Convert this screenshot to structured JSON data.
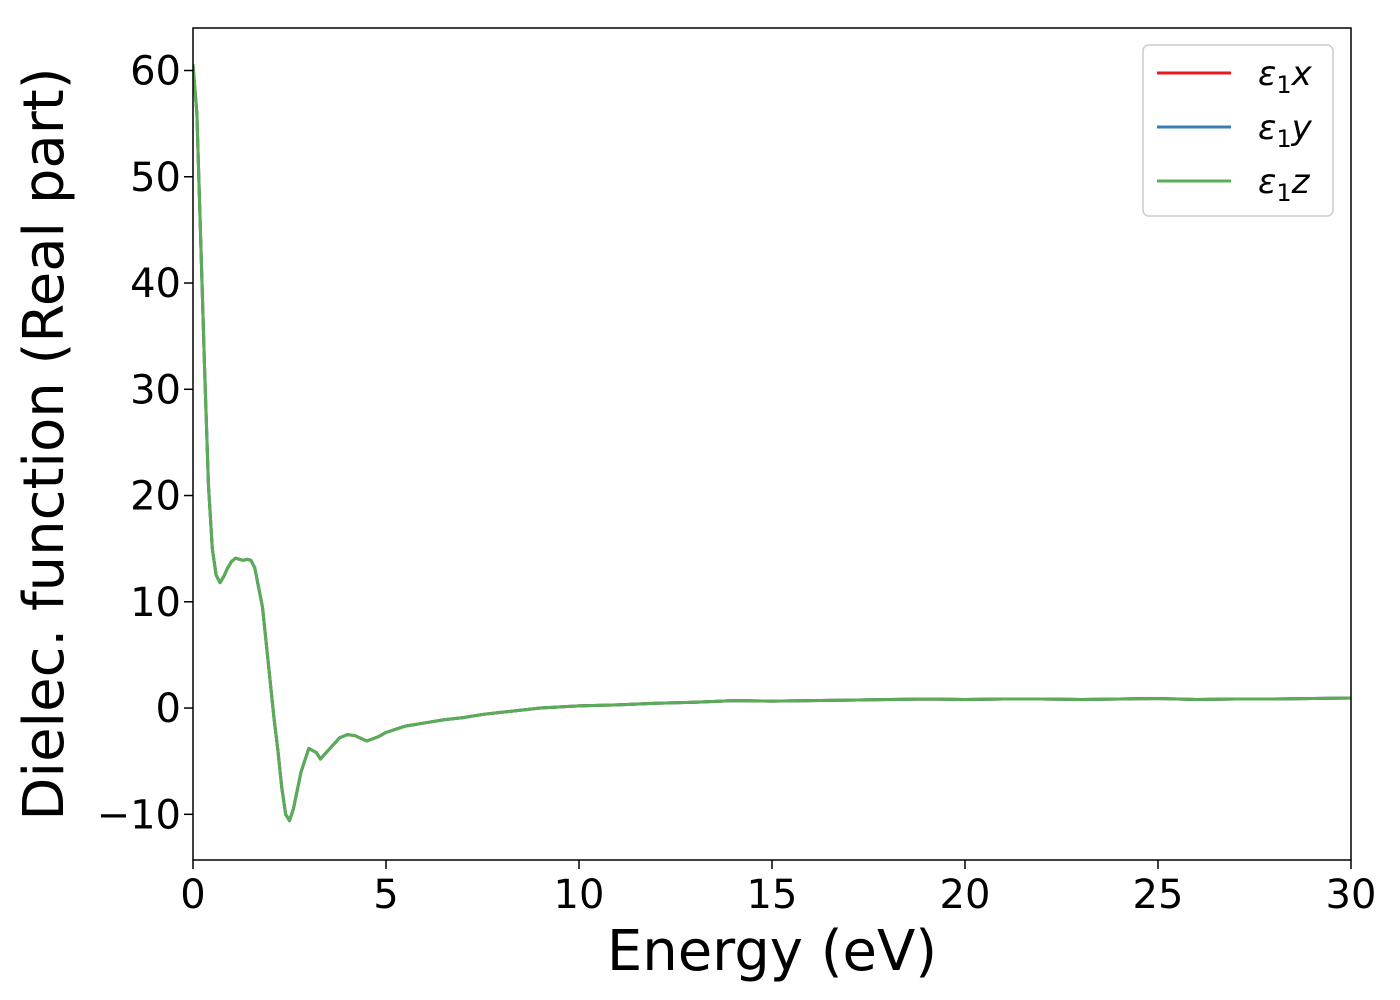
{
  "chart_data": {
    "type": "line",
    "title": "",
    "xlabel": "Energy (eV)",
    "ylabel": "Dielec. function (Real part)",
    "xlim": [
      0,
      30
    ],
    "ylim": [
      -14.3,
      64
    ],
    "x_ticks": [
      0,
      5,
      10,
      15,
      20,
      25,
      30
    ],
    "x_tick_labels": [
      "0",
      "5",
      "10",
      "15",
      "20",
      "25",
      "30"
    ],
    "y_ticks": [
      -10,
      0,
      10,
      20,
      30,
      40,
      50,
      60
    ],
    "y_tick_labels": [
      "−10",
      "0",
      "10",
      "20",
      "30",
      "40",
      "50",
      "60"
    ],
    "grid": false,
    "legend_position": "top-right",
    "series": [
      {
        "name": "ε₁x",
        "legend_base": "ε",
        "legend_sub": "1",
        "legend_suffix": "x",
        "color": "#e41a1c",
        "x": [
          0,
          0.1,
          0.2,
          0.3,
          0.4,
          0.5,
          0.6,
          0.7,
          0.8,
          0.9,
          1.0,
          1.1,
          1.2,
          1.3,
          1.4,
          1.5,
          1.6,
          1.8,
          2.0,
          2.1,
          2.2,
          2.3,
          2.4,
          2.5,
          2.6,
          2.8,
          3.0,
          3.2,
          3.3,
          3.5,
          3.8,
          4.0,
          4.2,
          4.5,
          4.8,
          5.0,
          5.5,
          6.0,
          6.5,
          7.0,
          7.5,
          8.0,
          9.0,
          10.0,
          11.0,
          12.0,
          13.0,
          14.0,
          15.0,
          16.0,
          17.0,
          18.0,
          19.0,
          20.0,
          21.0,
          22.0,
          23.0,
          24.0,
          25.0,
          26.0,
          27.0,
          28.0,
          29.0,
          30.0
        ],
        "y": [
          60.5,
          56.0,
          44.0,
          32.0,
          21.0,
          15.0,
          12.5,
          11.8,
          12.4,
          13.2,
          13.8,
          14.1,
          14.0,
          13.9,
          14.0,
          13.9,
          13.2,
          9.5,
          2.5,
          -1.0,
          -4.0,
          -7.5,
          -10.0,
          -10.6,
          -9.5,
          -6.0,
          -3.8,
          -4.2,
          -4.8,
          -4.0,
          -2.8,
          -2.5,
          -2.6,
          -3.1,
          -2.7,
          -2.3,
          -1.7,
          -1.4,
          -1.1,
          -0.9,
          -0.6,
          -0.4,
          0.0,
          0.2,
          0.3,
          0.45,
          0.55,
          0.7,
          0.65,
          0.7,
          0.75,
          0.8,
          0.85,
          0.8,
          0.85,
          0.85,
          0.8,
          0.85,
          0.9,
          0.8,
          0.85,
          0.85,
          0.9,
          0.95
        ]
      },
      {
        "name": "ε₁y",
        "legend_base": "ε",
        "legend_sub": "1",
        "legend_suffix": "y",
        "color": "#377eb8",
        "x": [
          0,
          0.1,
          0.2,
          0.3,
          0.4,
          0.5,
          0.6,
          0.7,
          0.8,
          0.9,
          1.0,
          1.1,
          1.2,
          1.3,
          1.4,
          1.5,
          1.6,
          1.8,
          2.0,
          2.1,
          2.2,
          2.3,
          2.4,
          2.5,
          2.6,
          2.8,
          3.0,
          3.2,
          3.3,
          3.5,
          3.8,
          4.0,
          4.2,
          4.5,
          4.8,
          5.0,
          5.5,
          6.0,
          6.5,
          7.0,
          7.5,
          8.0,
          9.0,
          10.0,
          11.0,
          12.0,
          13.0,
          14.0,
          15.0,
          16.0,
          17.0,
          18.0,
          19.0,
          20.0,
          21.0,
          22.0,
          23.0,
          24.0,
          25.0,
          26.0,
          27.0,
          28.0,
          29.0,
          30.0
        ],
        "y": [
          60.5,
          56.0,
          44.0,
          32.0,
          21.0,
          15.0,
          12.5,
          11.8,
          12.4,
          13.2,
          13.8,
          14.1,
          14.0,
          13.9,
          14.0,
          13.9,
          13.2,
          9.5,
          2.5,
          -1.0,
          -4.0,
          -7.5,
          -10.0,
          -10.6,
          -9.5,
          -6.0,
          -3.8,
          -4.2,
          -4.8,
          -4.0,
          -2.8,
          -2.5,
          -2.6,
          -3.1,
          -2.7,
          -2.3,
          -1.7,
          -1.4,
          -1.1,
          -0.9,
          -0.6,
          -0.4,
          0.0,
          0.2,
          0.3,
          0.45,
          0.55,
          0.7,
          0.65,
          0.7,
          0.75,
          0.8,
          0.85,
          0.8,
          0.85,
          0.85,
          0.8,
          0.85,
          0.9,
          0.8,
          0.85,
          0.85,
          0.9,
          0.95
        ]
      },
      {
        "name": "ε₁z",
        "legend_base": "ε",
        "legend_sub": "1",
        "legend_suffix": "z",
        "color": "#5aac57",
        "x": [
          0,
          0.1,
          0.2,
          0.3,
          0.4,
          0.5,
          0.6,
          0.7,
          0.8,
          0.9,
          1.0,
          1.1,
          1.2,
          1.3,
          1.4,
          1.5,
          1.6,
          1.8,
          2.0,
          2.1,
          2.2,
          2.3,
          2.4,
          2.5,
          2.6,
          2.8,
          3.0,
          3.2,
          3.3,
          3.5,
          3.8,
          4.0,
          4.2,
          4.5,
          4.8,
          5.0,
          5.5,
          6.0,
          6.5,
          7.0,
          7.5,
          8.0,
          9.0,
          10.0,
          11.0,
          12.0,
          13.0,
          14.0,
          15.0,
          16.0,
          17.0,
          18.0,
          19.0,
          20.0,
          21.0,
          22.0,
          23.0,
          24.0,
          25.0,
          26.0,
          27.0,
          28.0,
          29.0,
          30.0
        ],
        "y": [
          60.5,
          56.0,
          44.0,
          32.0,
          21.0,
          15.0,
          12.5,
          11.8,
          12.4,
          13.2,
          13.8,
          14.1,
          14.0,
          13.9,
          14.0,
          13.9,
          13.2,
          9.5,
          2.5,
          -1.0,
          -4.0,
          -7.5,
          -10.0,
          -10.6,
          -9.5,
          -6.0,
          -3.8,
          -4.2,
          -4.8,
          -4.0,
          -2.8,
          -2.5,
          -2.6,
          -3.1,
          -2.7,
          -2.3,
          -1.7,
          -1.4,
          -1.1,
          -0.9,
          -0.6,
          -0.4,
          0.0,
          0.2,
          0.3,
          0.45,
          0.55,
          0.7,
          0.65,
          0.7,
          0.75,
          0.8,
          0.85,
          0.8,
          0.85,
          0.85,
          0.8,
          0.85,
          0.9,
          0.8,
          0.85,
          0.85,
          0.9,
          0.95
        ]
      }
    ]
  }
}
